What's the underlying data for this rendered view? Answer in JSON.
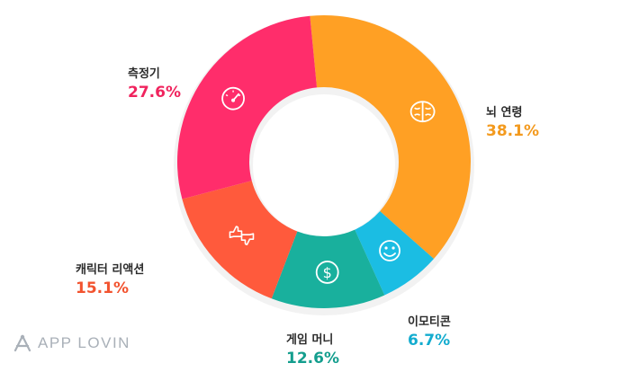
{
  "chart_data": {
    "type": "pie",
    "donut": true,
    "categories": [
      "뇌 연령",
      "이모티콘",
      "게임 머니",
      "캐릭터 리액션",
      "측정기"
    ],
    "values": [
      38.1,
      6.7,
      12.6,
      15.1,
      27.6
    ],
    "value_labels": [
      "38.1%",
      "6.7%",
      "12.6%",
      "15.1%",
      "27.6%"
    ],
    "colors": [
      "#FFA024",
      "#1BBDE3",
      "#19B09D",
      "#FF5A3C",
      "#FF2D6B"
    ],
    "icons": [
      "brain-icon",
      "smiley-icon",
      "dollar-coin-icon",
      "thumbs-icon",
      "gauge-icon"
    ],
    "title": "",
    "xlabel": "",
    "ylabel": "",
    "legend": "none"
  },
  "brand": {
    "logo_text": "APP LOVIN",
    "logo_color": "#A9B0B8"
  }
}
